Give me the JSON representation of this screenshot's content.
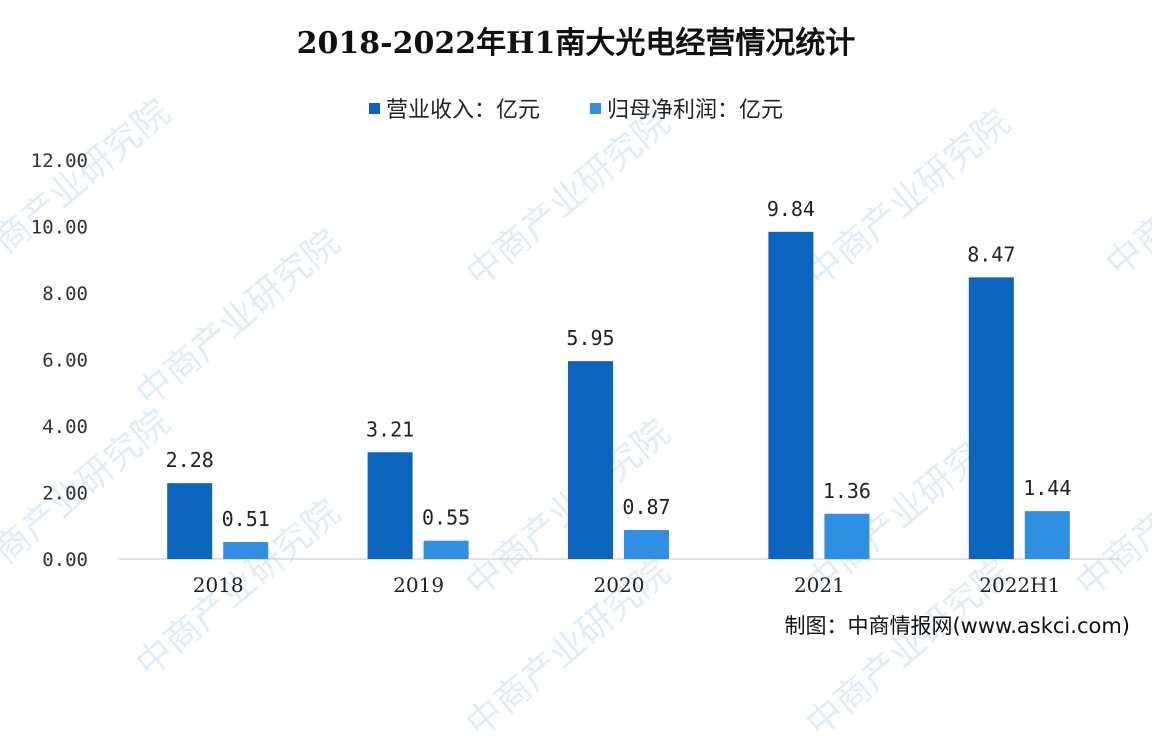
{
  "chart_data": {
    "type": "bar",
    "title": "2018-2022年H1南大光电经营情况统计",
    "categories": [
      "2018",
      "2019",
      "2020",
      "2021",
      "2022H1"
    ],
    "series": [
      {
        "name": "营业收入：亿元",
        "values": [
          2.28,
          3.21,
          5.95,
          9.84,
          8.47
        ],
        "labels": [
          "2.28",
          "3.21",
          "5.95",
          "9.84",
          "8.47"
        ],
        "color": "#0b64bd"
      },
      {
        "name": "归母净利润：亿元",
        "values": [
          0.51,
          0.55,
          0.87,
          1.36,
          1.44
        ],
        "labels": [
          "0.51",
          "0.55",
          "0.87",
          "1.36",
          "1.44"
        ],
        "color": "#2e8fe3"
      }
    ],
    "ylim": [
      0,
      12
    ],
    "yticks": [
      "0.00",
      "2.00",
      "4.00",
      "6.00",
      "8.00",
      "10.00",
      "12.00"
    ],
    "grid": false,
    "legend": "top-center"
  },
  "source": "制图：中商情报网(www.askci.com)",
  "watermark": "中商产业研究院"
}
